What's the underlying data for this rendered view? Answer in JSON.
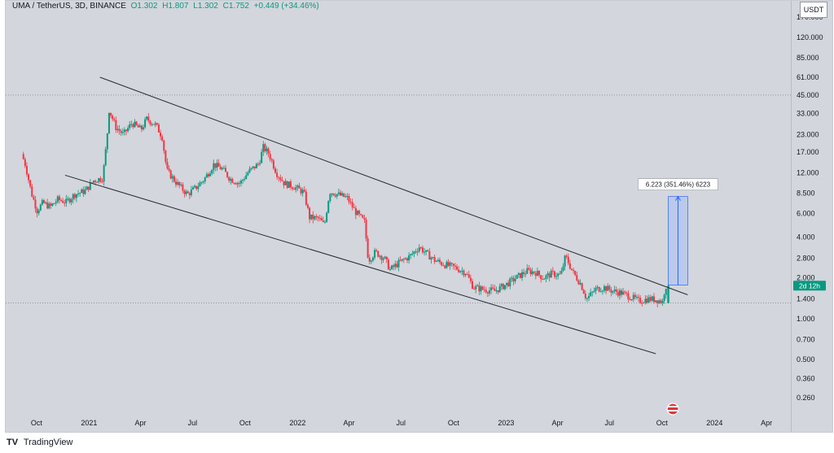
{
  "header": {
    "symbol": "UMA / TetherUS, 3D, BINANCE",
    "open": "O1.302",
    "high": "H1.807",
    "low": "L1.302",
    "close": "C1.752",
    "change": "+0.449 (+34.46%)"
  },
  "quote_currency": "USDT",
  "footer": {
    "logo": "TV",
    "brand": "TradingView"
  },
  "colors": {
    "background": "#d3d6dc",
    "up": "#089981",
    "down": "#f23645",
    "channel": "#262a33",
    "measure_fill": "#b3c6f2",
    "measure_stroke": "#2962ff",
    "current_price_badge": "#089981"
  },
  "chart_data": {
    "type": "candlestick",
    "scale": "log",
    "x_ticks": [
      "Oct",
      "2021",
      "Apr",
      "Jul",
      "Oct",
      "2022",
      "Apr",
      "Jul",
      "Oct",
      "2023",
      "Apr",
      "Jul",
      "Oct",
      "2024",
      "Apr"
    ],
    "y_ticks": [
      "170.000",
      "120.000",
      "85.000",
      "61.000",
      "45.000",
      "33.000",
      "23.000",
      "17.000",
      "12.000",
      "8.500",
      "6.000",
      "4.000",
      "2.800",
      "2.000",
      "1.400",
      "1.000",
      "0.700",
      "0.500",
      "0.360",
      "0.260"
    ],
    "price_series": {
      "points": [
        [
          "2020-09-08",
          16.5
        ],
        [
          "2020-09-15",
          13.5
        ],
        [
          "2020-09-25",
          8.5
        ],
        [
          "2020-10-05",
          6.3
        ],
        [
          "2020-10-15",
          7.2
        ],
        [
          "2020-10-28",
          6.7
        ],
        [
          "2020-11-10",
          7.6
        ],
        [
          "2020-11-25",
          7.3
        ],
        [
          "2020-12-10",
          8.3
        ],
        [
          "2020-12-28",
          8.8
        ],
        [
          "2021-01-12",
          10.5
        ],
        [
          "2021-01-28",
          11.0
        ],
        [
          "2021-02-04",
          21.0
        ],
        [
          "2021-02-08",
          35.0
        ],
        [
          "2021-02-20",
          26.0
        ],
        [
          "2021-03-05",
          23.0
        ],
        [
          "2021-03-20",
          28.0
        ],
        [
          "2021-04-05",
          25.0
        ],
        [
          "2021-04-15",
          30.0
        ],
        [
          "2021-05-01",
          27.0
        ],
        [
          "2021-05-12",
          22.0
        ],
        [
          "2021-05-20",
          12.5
        ],
        [
          "2021-06-05",
          10.2
        ],
        [
          "2021-06-25",
          8.3
        ],
        [
          "2021-07-10",
          9.3
        ],
        [
          "2021-07-25",
          10.8
        ],
        [
          "2021-08-10",
          13.8
        ],
        [
          "2021-08-25",
          12.8
        ],
        [
          "2021-09-08",
          10.8
        ],
        [
          "2021-09-25",
          10.0
        ],
        [
          "2021-10-10",
          12.2
        ],
        [
          "2021-10-28",
          14.0
        ],
        [
          "2021-11-05",
          18.5
        ],
        [
          "2021-11-15",
          16.5
        ],
        [
          "2021-11-28",
          12.0
        ],
        [
          "2021-12-12",
          10.0
        ],
        [
          "2021-12-28",
          9.5
        ],
        [
          "2022-01-15",
          8.6
        ],
        [
          "2022-01-25",
          5.6
        ],
        [
          "2022-02-10",
          5.5
        ],
        [
          "2022-02-20",
          4.9
        ],
        [
          "2022-03-01",
          8.7
        ],
        [
          "2022-03-15",
          8.3
        ],
        [
          "2022-04-01",
          7.8
        ],
        [
          "2022-04-15",
          6.2
        ],
        [
          "2022-05-01",
          5.2
        ],
        [
          "2022-05-08",
          2.7
        ],
        [
          "2022-05-20",
          3.1
        ],
        [
          "2022-06-05",
          2.8
        ],
        [
          "2022-06-15",
          2.3
        ],
        [
          "2022-07-01",
          2.6
        ],
        [
          "2022-07-20",
          2.9
        ],
        [
          "2022-08-05",
          3.4
        ],
        [
          "2022-08-15",
          3.1
        ],
        [
          "2022-09-01",
          2.7
        ],
        [
          "2022-09-20",
          2.5
        ],
        [
          "2022-10-05",
          2.4
        ],
        [
          "2022-10-25",
          2.2
        ],
        [
          "2022-11-08",
          1.7
        ],
        [
          "2022-11-25",
          1.65
        ],
        [
          "2022-12-15",
          1.6
        ],
        [
          "2023-01-05",
          1.8
        ],
        [
          "2023-01-25",
          2.05
        ],
        [
          "2023-02-10",
          2.25
        ],
        [
          "2023-02-25",
          2.2
        ],
        [
          "2023-03-10",
          2.0
        ],
        [
          "2023-03-25",
          2.15
        ],
        [
          "2023-04-10",
          2.1
        ],
        [
          "2023-04-18",
          2.9
        ],
        [
          "2023-05-01",
          2.2
        ],
        [
          "2023-05-15",
          1.8
        ],
        [
          "2023-05-25",
          1.4
        ],
        [
          "2023-06-10",
          1.65
        ],
        [
          "2023-06-25",
          1.7
        ],
        [
          "2023-07-10",
          1.6
        ],
        [
          "2023-07-25",
          1.55
        ],
        [
          "2023-08-10",
          1.45
        ],
        [
          "2023-08-25",
          1.35
        ],
        [
          "2023-09-10",
          1.4
        ],
        [
          "2023-09-25",
          1.38
        ],
        [
          "2023-10-05",
          1.33
        ],
        [
          "2023-10-10",
          1.752
        ]
      ]
    },
    "upper_channel": [
      [
        "2021-01-20",
        61.0
      ],
      [
        "2023-11-15",
        1.5
      ]
    ],
    "lower_channel": [
      [
        "2020-11-20",
        11.5
      ],
      [
        "2023-09-20",
        0.55
      ]
    ],
    "horizontal_levels": [
      45.0,
      1.302
    ],
    "measure": {
      "label": "6.223 (351.46%) 6223",
      "from": [
        "2023-10-12",
        1.77
      ],
      "to": [
        "2023-11-15",
        8.0
      ]
    },
    "current_price": {
      "badge_label": "2d 12h",
      "value": 1.752
    },
    "ylim": [
      0.22,
      200
    ]
  }
}
